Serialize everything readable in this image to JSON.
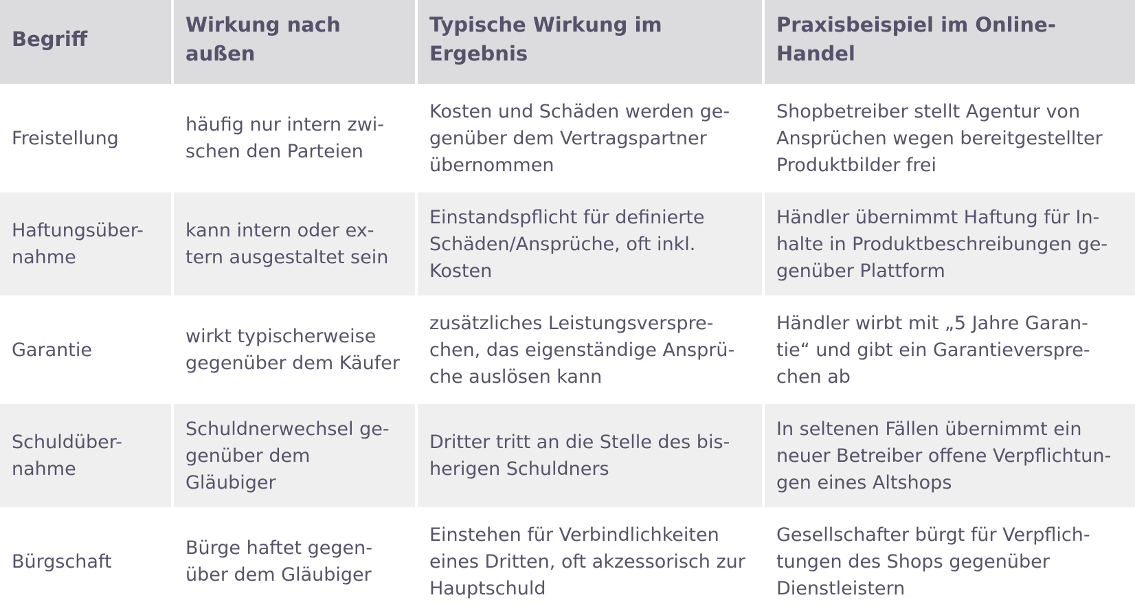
{
  "colors": {
    "header_bg": "#dcdcdf",
    "alt_row_bg": "#efeff0",
    "text": "#57546a"
  },
  "headers": [
    "Begriff",
    "Wirkung nach\naußen",
    "Typische Wirkung im\nErgebnis",
    "Praxisbeispiel im Online-\nHandel"
  ],
  "rows": [
    [
      "Freistellung",
      "häufig nur intern zwi-\nschen den Parteien",
      "Kosten und Schäden werden ge-\ngenüber dem Vertragspartner\nübernommen",
      "Shopbetreiber stellt Agentur von\nAnsprüchen wegen bereitgestellter\nProduktbilder frei"
    ],
    [
      "Haftungsüber-\nnahme",
      "kann intern oder ex-\ntern ausgestaltet sein",
      "Einstandspflicht für definierte\nSchäden/Ansprüche, oft inkl.\nKosten",
      "Händler übernimmt Haftung für In-\nhalte in Produktbeschreibungen ge-\ngenüber Plattform"
    ],
    [
      "Garantie",
      "wirkt typischerweise\ngegenüber dem Käufer",
      "zusätzliches Leistungsverspre-\nchen, das eigenständige Ansprü-\nche auslösen kann",
      "Händler wirbt mit „5 Jahre Garan-\ntie“ und gibt ein Garantieverspre-\nchen ab"
    ],
    [
      "Schuldüber-\nnahme",
      "Schuldnerwechsel ge-\ngenüber dem\nGläubiger",
      "Dritter tritt an die Stelle des bis-\nherigen Schuldners",
      "In seltenen Fällen übernimmt ein\nneuer Betreiber offene Verpflichtun-\ngen eines Altshops"
    ],
    [
      "Bürgschaft",
      "Bürge haftet gegen-\nüber dem Gläubiger",
      "Einstehen für Verbindlichkeiten\neines Dritten, oft akzessorisch zur\nHauptschuld",
      "Gesellschafter bürgt für Verpflich-\ntungen des Shops gegenüber\nDienstleistern"
    ]
  ]
}
